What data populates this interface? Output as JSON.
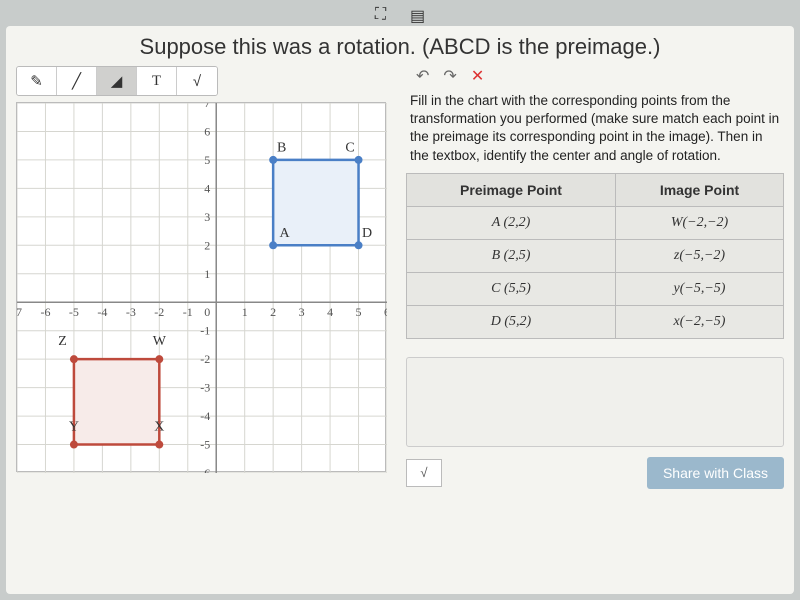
{
  "title": "Suppose this was a rotation. (ABCD is the preimage.)",
  "toolbar": {
    "items": [
      "pencil",
      "line",
      "eraser",
      "T",
      "sqrt"
    ],
    "active_index": 2,
    "text_label": "T",
    "sqrt_label": "√"
  },
  "graph": {
    "xmin": -7,
    "xmax": 6,
    "ymin": -6,
    "ymax": 7,
    "grid_color": "#d6d6d0",
    "axis_color": "#888",
    "bg": "#ffffff",
    "tick_fontsize": 12,
    "blue_square": {
      "color": "#4a7fc6",
      "fill": "#e9f0f9",
      "line_width": 2.5,
      "points": {
        "A": [
          2,
          2
        ],
        "B": [
          2,
          5
        ],
        "C": [
          5,
          5
        ],
        "D": [
          5,
          2
        ]
      },
      "label_positions": {
        "A": [
          2.4,
          2.3
        ],
        "B": [
          2.3,
          5.3
        ],
        "C": [
          4.7,
          5.3
        ],
        "D": [
          5.3,
          2.3
        ]
      }
    },
    "red_square": {
      "color": "#be4a3c",
      "fill": "#f7ebe9",
      "line_width": 2.5,
      "points": {
        "W": [
          -2,
          -2
        ],
        "X": [
          -2,
          -5
        ],
        "Y": [
          -5,
          -5
        ],
        "Z": [
          -5,
          -2
        ]
      },
      "label_positions": {
        "W": [
          -2.0,
          -1.5
        ],
        "X": [
          -2.0,
          -4.5
        ],
        "Y": [
          -5.0,
          -4.5
        ],
        "Z": [
          -5.4,
          -1.5
        ]
      }
    }
  },
  "mini_toolbar": {
    "undo": "↶",
    "redo": "↷",
    "close": "✕"
  },
  "instructions": "Fill in the chart with the corresponding points from the transformation you performed (make sure match each point in the preimage its corresponding point in the image).  Then in the textbox, identify the center and angle of rotation.",
  "table": {
    "headers": [
      "Preimage Point",
      "Image Point"
    ],
    "rows": [
      [
        "A (2,2)",
        "W(−2,−2)"
      ],
      [
        "B (2,5)",
        "z(−5,−2)"
      ],
      [
        "C (5,5)",
        "y(−5,−5)"
      ],
      [
        "D (5,2)",
        "x(−2,−5)"
      ]
    ]
  },
  "math_toggle": "√",
  "share_label": "Share with Class"
}
